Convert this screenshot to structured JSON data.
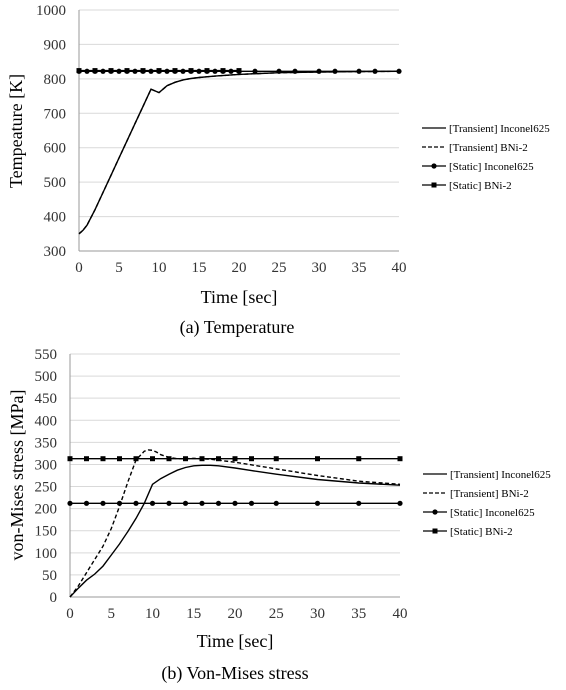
{
  "chart_data": [
    {
      "type": "line",
      "caption": "(a) Temperature",
      "xlabel": "Time [sec]",
      "ylabel": "Tempeature [K]",
      "xlim": [
        0,
        40
      ],
      "ylim": [
        300,
        1000
      ],
      "xticks": [
        0,
        5,
        10,
        15,
        20,
        25,
        30,
        35,
        40
      ],
      "yticks": [
        300,
        400,
        500,
        600,
        700,
        800,
        900,
        1000
      ],
      "grid": "horizontal",
      "legend_position": "right",
      "series": [
        {
          "name": "[Transient] Inconel625",
          "style": "solid",
          "marker": "none",
          "x": [
            0,
            0.5,
            1,
            2,
            3,
            4,
            5,
            6,
            7,
            8,
            9,
            10,
            10.5,
            11,
            12,
            13,
            14,
            15,
            17,
            20,
            25,
            30,
            35,
            40
          ],
          "y": [
            350,
            360,
            375,
            420,
            470,
            520,
            570,
            620,
            670,
            720,
            770,
            760,
            770,
            780,
            790,
            797,
            801,
            804,
            808,
            813,
            818,
            820,
            821,
            822
          ]
        },
        {
          "name": "[Transient] BNi-2",
          "style": "dashed",
          "marker": "none",
          "x": [
            0,
            0.5,
            1,
            2,
            3,
            4,
            5,
            6,
            7,
            8,
            9,
            10,
            10.5,
            11,
            12,
            13,
            14,
            15,
            17,
            20,
            25,
            30,
            35,
            40
          ],
          "y": [
            350,
            360,
            375,
            420,
            470,
            520,
            570,
            620,
            670,
            720,
            770,
            760,
            770,
            780,
            790,
            797,
            801,
            804,
            808,
            813,
            818,
            820,
            821,
            822
          ]
        },
        {
          "name": "[Static] Inconel625",
          "style": "solid",
          "marker": "circle",
          "x": [
            0,
            1,
            2,
            3,
            4,
            5,
            6,
            7,
            8,
            9,
            10,
            11,
            12,
            13,
            14,
            15,
            16,
            17,
            18,
            19,
            20,
            22,
            25,
            27,
            30,
            32,
            35,
            37,
            40
          ],
          "y": [
            822,
            822,
            822,
            822,
            822,
            822,
            822,
            822,
            822,
            822,
            822,
            822,
            822,
            822,
            822,
            822,
            822,
            822,
            822,
            822,
            822,
            822,
            822,
            822,
            822,
            822,
            822,
            822,
            822
          ]
        },
        {
          "name": "[Static] BNi-2",
          "style": "solid",
          "marker": "square",
          "x": [
            0,
            2,
            4,
            6,
            8,
            10,
            12,
            14,
            16,
            18,
            20
          ],
          "y": [
            824,
            824,
            824,
            824,
            824,
            824,
            824,
            824,
            824,
            824,
            824
          ]
        }
      ]
    },
    {
      "type": "line",
      "caption": "(b) Von-Mises stress",
      "xlabel": "Time [sec]",
      "ylabel": "von-Mises stress [MPa]",
      "xlim": [
        0,
        40
      ],
      "ylim": [
        0,
        550
      ],
      "xticks": [
        0,
        5,
        10,
        15,
        20,
        25,
        30,
        35,
        40
      ],
      "yticks": [
        0,
        50,
        100,
        150,
        200,
        250,
        300,
        350,
        400,
        450,
        500,
        550
      ],
      "grid": "horizontal",
      "legend_position": "right",
      "series": [
        {
          "name": "[Transient] Inconel625",
          "style": "solid",
          "marker": "none",
          "x": [
            0,
            1,
            2,
            3,
            4,
            5,
            6,
            7,
            8,
            9,
            10,
            11,
            12,
            13,
            14,
            15,
            16,
            17,
            18,
            20,
            22,
            25,
            30,
            35,
            40
          ],
          "y": [
            0,
            20,
            38,
            52,
            70,
            95,
            120,
            148,
            178,
            212,
            255,
            268,
            278,
            287,
            293,
            297,
            298,
            298,
            297,
            292,
            286,
            278,
            266,
            258,
            253
          ]
        },
        {
          "name": "[Transient] BNi-2",
          "style": "dashed",
          "marker": "none",
          "x": [
            0,
            1,
            2,
            3,
            4,
            5,
            6,
            7,
            8,
            9,
            9.5,
            10,
            10.5,
            11,
            12,
            13,
            14,
            15,
            17,
            20,
            25,
            30,
            35,
            40
          ],
          "y": [
            0,
            25,
            55,
            85,
            115,
            155,
            205,
            260,
            310,
            330,
            333,
            332,
            328,
            322,
            316,
            313,
            313,
            314,
            312,
            305,
            290,
            275,
            262,
            255
          ]
        },
        {
          "name": "[Static] Inconel625",
          "style": "solid",
          "marker": "circle",
          "x": [
            0,
            2,
            4,
            6,
            8,
            10,
            12,
            14,
            16,
            18,
            20,
            22,
            25,
            30,
            35,
            40
          ],
          "y": [
            212,
            212,
            212,
            212,
            212,
            212,
            212,
            212,
            212,
            212,
            212,
            212,
            212,
            212,
            212,
            212
          ]
        },
        {
          "name": "[Static] BNi-2",
          "style": "solid",
          "marker": "square",
          "x": [
            0,
            2,
            4,
            6,
            8,
            10,
            12,
            14,
            16,
            18,
            20,
            22,
            25,
            30,
            35,
            40
          ],
          "y": [
            313,
            313,
            313,
            313,
            313,
            313,
            313,
            313,
            313,
            313,
            313,
            313,
            313,
            313,
            313,
            313
          ]
        }
      ]
    }
  ]
}
